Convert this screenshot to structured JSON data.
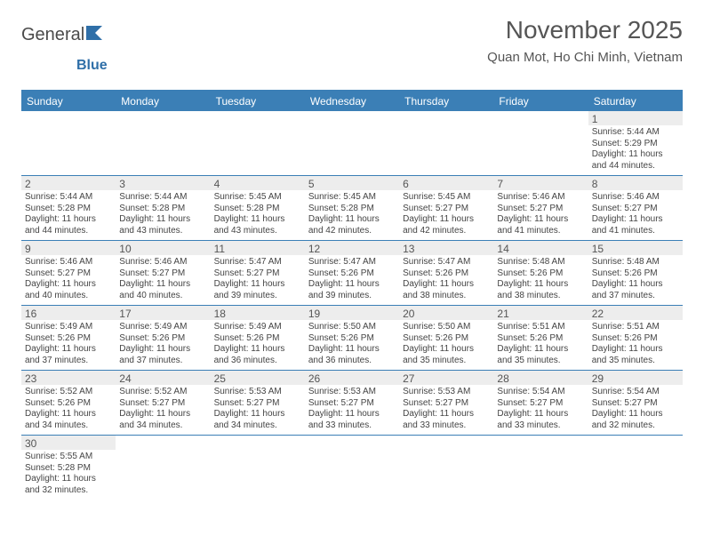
{
  "logo": {
    "part1": "Gene",
    "part2": "ral",
    "part3": "Blue"
  },
  "title": "November 2025",
  "location": "Quan Mot, Ho Chi Minh, Vietnam",
  "colors": {
    "header_bar": "#3b7fb6",
    "shaded_cell": "#ededed",
    "text": "#444444",
    "title_text": "#555555"
  },
  "days_of_week": [
    "Sunday",
    "Monday",
    "Tuesday",
    "Wednesday",
    "Thursday",
    "Friday",
    "Saturday"
  ],
  "weeks": [
    [
      null,
      null,
      null,
      null,
      null,
      null,
      {
        "n": "1",
        "sr": "5:44 AM",
        "ss": "5:29 PM",
        "dl": "11 hours and 44 minutes."
      }
    ],
    [
      {
        "n": "2",
        "sr": "5:44 AM",
        "ss": "5:28 PM",
        "dl": "11 hours and 44 minutes."
      },
      {
        "n": "3",
        "sr": "5:44 AM",
        "ss": "5:28 PM",
        "dl": "11 hours and 43 minutes."
      },
      {
        "n": "4",
        "sr": "5:45 AM",
        "ss": "5:28 PM",
        "dl": "11 hours and 43 minutes."
      },
      {
        "n": "5",
        "sr": "5:45 AM",
        "ss": "5:28 PM",
        "dl": "11 hours and 42 minutes."
      },
      {
        "n": "6",
        "sr": "5:45 AM",
        "ss": "5:27 PM",
        "dl": "11 hours and 42 minutes."
      },
      {
        "n": "7",
        "sr": "5:46 AM",
        "ss": "5:27 PM",
        "dl": "11 hours and 41 minutes."
      },
      {
        "n": "8",
        "sr": "5:46 AM",
        "ss": "5:27 PM",
        "dl": "11 hours and 41 minutes."
      }
    ],
    [
      {
        "n": "9",
        "sr": "5:46 AM",
        "ss": "5:27 PM",
        "dl": "11 hours and 40 minutes."
      },
      {
        "n": "10",
        "sr": "5:46 AM",
        "ss": "5:27 PM",
        "dl": "11 hours and 40 minutes."
      },
      {
        "n": "11",
        "sr": "5:47 AM",
        "ss": "5:27 PM",
        "dl": "11 hours and 39 minutes."
      },
      {
        "n": "12",
        "sr": "5:47 AM",
        "ss": "5:26 PM",
        "dl": "11 hours and 39 minutes."
      },
      {
        "n": "13",
        "sr": "5:47 AM",
        "ss": "5:26 PM",
        "dl": "11 hours and 38 minutes."
      },
      {
        "n": "14",
        "sr": "5:48 AM",
        "ss": "5:26 PM",
        "dl": "11 hours and 38 minutes."
      },
      {
        "n": "15",
        "sr": "5:48 AM",
        "ss": "5:26 PM",
        "dl": "11 hours and 37 minutes."
      }
    ],
    [
      {
        "n": "16",
        "sr": "5:49 AM",
        "ss": "5:26 PM",
        "dl": "11 hours and 37 minutes."
      },
      {
        "n": "17",
        "sr": "5:49 AM",
        "ss": "5:26 PM",
        "dl": "11 hours and 37 minutes."
      },
      {
        "n": "18",
        "sr": "5:49 AM",
        "ss": "5:26 PM",
        "dl": "11 hours and 36 minutes."
      },
      {
        "n": "19",
        "sr": "5:50 AM",
        "ss": "5:26 PM",
        "dl": "11 hours and 36 minutes."
      },
      {
        "n": "20",
        "sr": "5:50 AM",
        "ss": "5:26 PM",
        "dl": "11 hours and 35 minutes."
      },
      {
        "n": "21",
        "sr": "5:51 AM",
        "ss": "5:26 PM",
        "dl": "11 hours and 35 minutes."
      },
      {
        "n": "22",
        "sr": "5:51 AM",
        "ss": "5:26 PM",
        "dl": "11 hours and 35 minutes."
      }
    ],
    [
      {
        "n": "23",
        "sr": "5:52 AM",
        "ss": "5:26 PM",
        "dl": "11 hours and 34 minutes."
      },
      {
        "n": "24",
        "sr": "5:52 AM",
        "ss": "5:27 PM",
        "dl": "11 hours and 34 minutes."
      },
      {
        "n": "25",
        "sr": "5:53 AM",
        "ss": "5:27 PM",
        "dl": "11 hours and 34 minutes."
      },
      {
        "n": "26",
        "sr": "5:53 AM",
        "ss": "5:27 PM",
        "dl": "11 hours and 33 minutes."
      },
      {
        "n": "27",
        "sr": "5:53 AM",
        "ss": "5:27 PM",
        "dl": "11 hours and 33 minutes."
      },
      {
        "n": "28",
        "sr": "5:54 AM",
        "ss": "5:27 PM",
        "dl": "11 hours and 33 minutes."
      },
      {
        "n": "29",
        "sr": "5:54 AM",
        "ss": "5:27 PM",
        "dl": "11 hours and 32 minutes."
      }
    ],
    [
      {
        "n": "30",
        "sr": "5:55 AM",
        "ss": "5:28 PM",
        "dl": "11 hours and 32 minutes."
      },
      null,
      null,
      null,
      null,
      null,
      null
    ]
  ],
  "labels": {
    "sunrise": "Sunrise: ",
    "sunset": "Sunset: ",
    "daylight": "Daylight: "
  }
}
